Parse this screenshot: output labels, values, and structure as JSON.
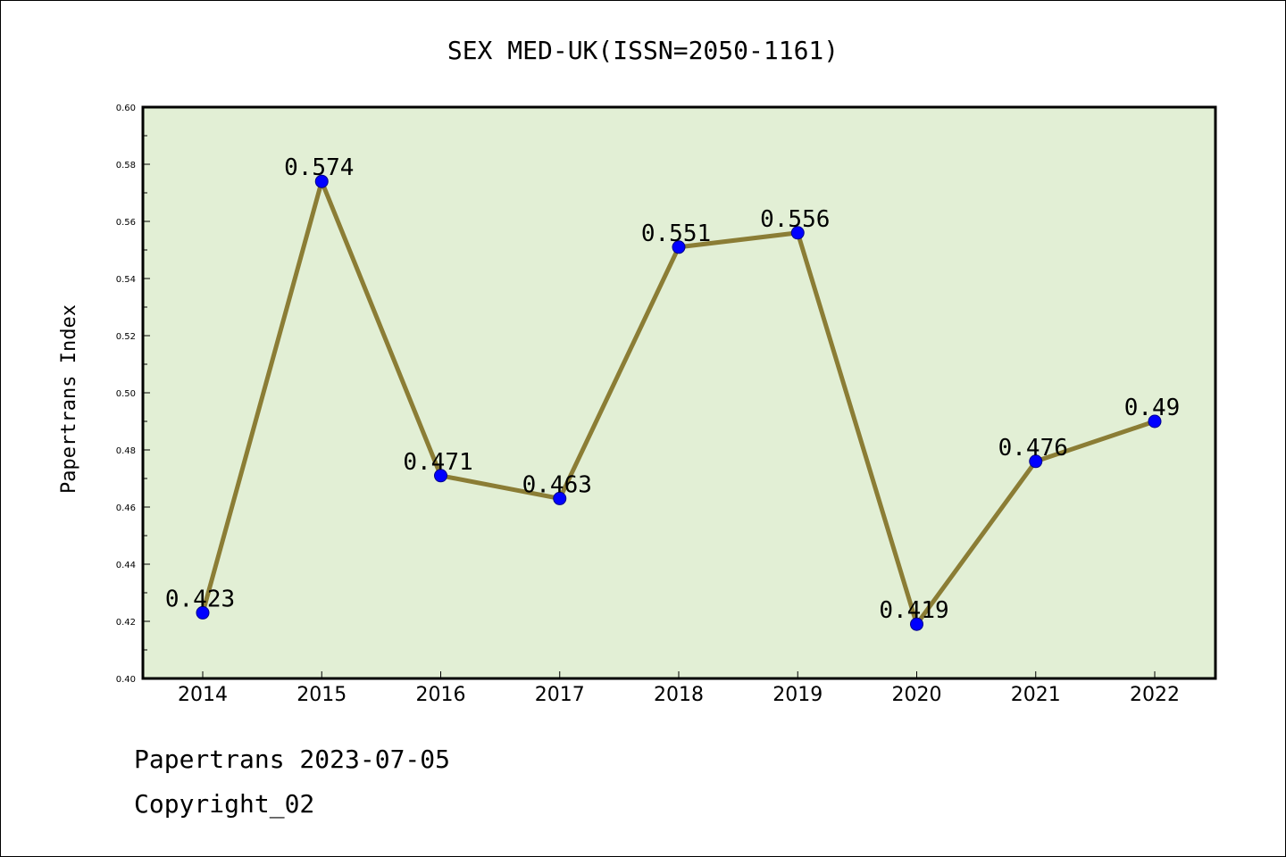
{
  "chart_data": {
    "type": "line",
    "title": "SEX MED-UK(ISSN=2050-1161)",
    "xlabel": "",
    "ylabel": "Papertrans Index",
    "categories": [
      "2014",
      "2015",
      "2016",
      "2017",
      "2018",
      "2019",
      "2020",
      "2021",
      "2022"
    ],
    "values": [
      0.423,
      0.574,
      0.471,
      0.463,
      0.551,
      0.556,
      0.419,
      0.476,
      0.49
    ],
    "data_labels": [
      "0.423",
      "0.574",
      "0.471",
      "0.463",
      "0.551",
      "0.556",
      "0.419",
      "0.476",
      "0.49"
    ],
    "ylim": [
      0.4,
      0.6
    ],
    "yticks": [
      "0.40",
      "0.42",
      "0.44",
      "0.46",
      "0.48",
      "0.50",
      "0.52",
      "0.54",
      "0.56",
      "0.58",
      "0.60"
    ],
    "grid": false,
    "colors": {
      "plot_background": "#e2efd5",
      "line": "#8b7d35",
      "marker": "#0000ff"
    }
  },
  "footer": {
    "date_line": "Papertrans 2023-07-05",
    "copyright": "Copyright_02"
  }
}
